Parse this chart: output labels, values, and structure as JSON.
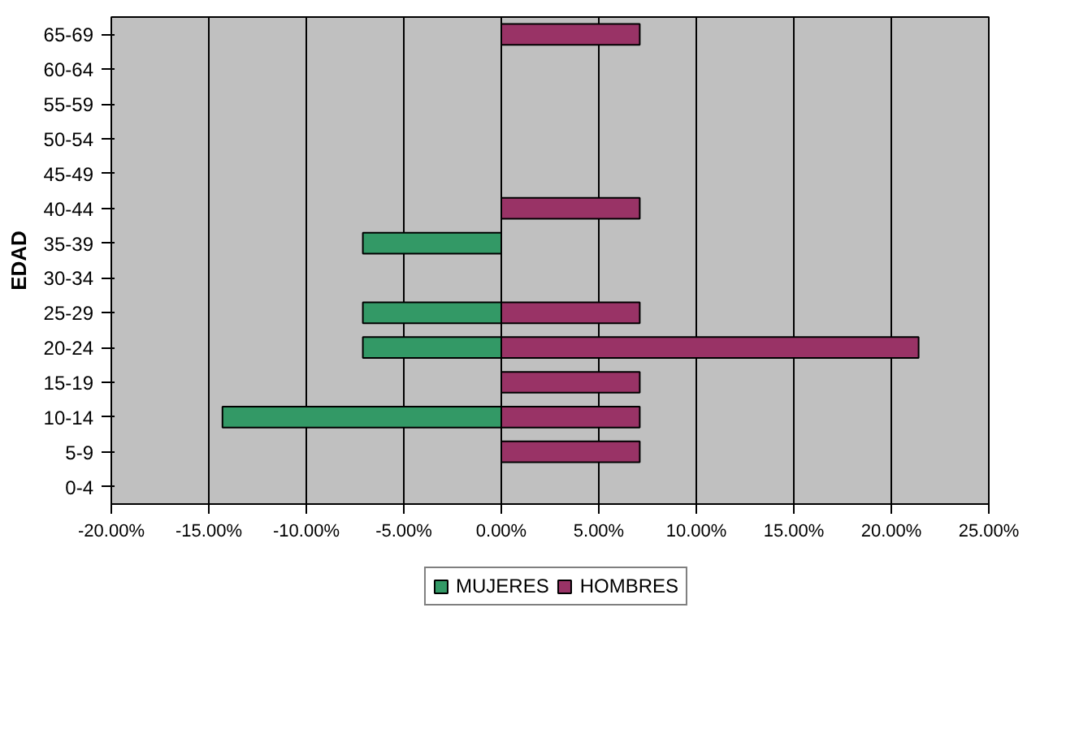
{
  "chart_data": {
    "type": "bar",
    "orientation": "horizontal",
    "ylabel": "EDAD",
    "categories": [
      "65-69",
      "60-64",
      "55-59",
      "50-54",
      "45-49",
      "40-44",
      "35-39",
      "30-34",
      "25-29",
      "20-24",
      "15-19",
      "10-14",
      "5-9",
      "0-4"
    ],
    "series": [
      {
        "name": "MUJERES",
        "color": "#339966",
        "values": [
          null,
          null,
          null,
          null,
          null,
          null,
          -7.1,
          null,
          -7.1,
          -7.1,
          null,
          -14.3,
          null,
          null
        ]
      },
      {
        "name": "HOMBRES",
        "color": "#993366",
        "values": [
          7.1,
          null,
          null,
          null,
          null,
          7.1,
          null,
          null,
          7.1,
          21.4,
          7.1,
          7.1,
          7.1,
          null
        ]
      }
    ],
    "xlim": [
      -20,
      25
    ],
    "xticks": [
      {
        "value": -20,
        "label": "-20.00%"
      },
      {
        "value": -15,
        "label": "-15.00%"
      },
      {
        "value": -10,
        "label": "-10.00%"
      },
      {
        "value": -5,
        "label": "-5.00%"
      },
      {
        "value": 0,
        "label": "0.00%"
      },
      {
        "value": 5,
        "label": "5.00%"
      },
      {
        "value": 10,
        "label": "10.00%"
      },
      {
        "value": 15,
        "label": "15.00%"
      },
      {
        "value": 20,
        "label": "20.00%"
      },
      {
        "value": 25,
        "label": "25.00%"
      }
    ],
    "grid": "x",
    "legend": "bottom"
  }
}
